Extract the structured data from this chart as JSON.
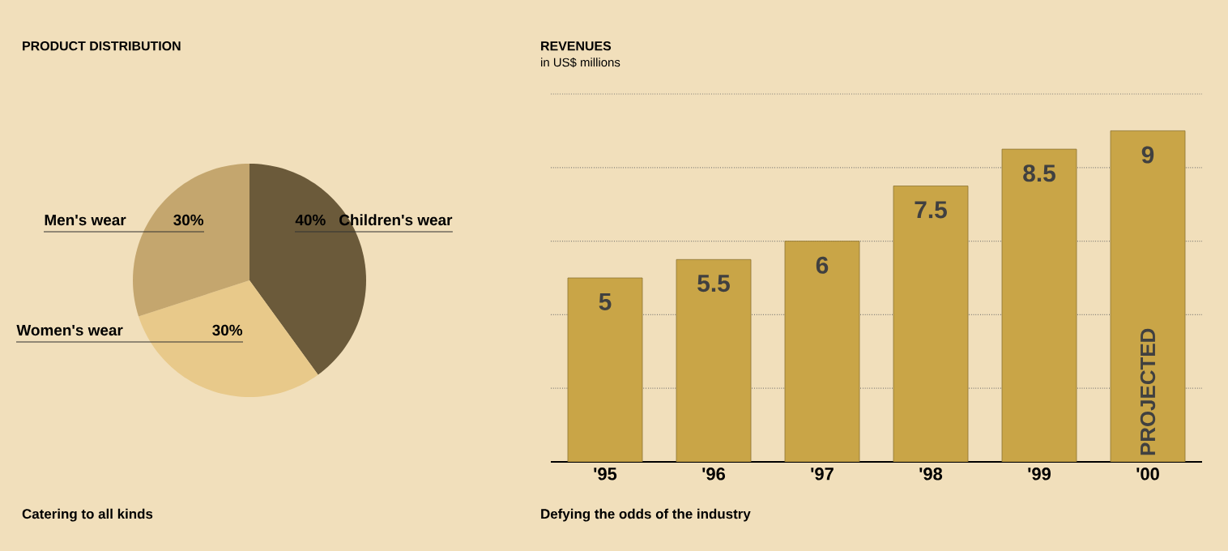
{
  "chart_data": [
    {
      "type": "pie",
      "title": "PRODUCT DISTRIBUTION",
      "categories": [
        "Children's wear",
        "Women's wear",
        "Men's wear"
      ],
      "values": [
        40,
        30,
        30
      ],
      "colors": [
        "#6b5a3a",
        "#e8c98a",
        "#c4a66e"
      ],
      "value_labels": [
        "40%",
        "30%",
        "30%"
      ],
      "annotations": [
        "Catering to all kinds"
      ]
    },
    {
      "type": "bar",
      "title": "REVENUES",
      "subtitle": "in US$ millions",
      "categories": [
        "'95",
        "'96",
        "'97",
        "'98",
        "'99",
        "'00"
      ],
      "values": [
        5,
        5.5,
        6,
        7.5,
        8.5,
        9
      ],
      "color": "#c9a547",
      "ylim": [
        0,
        10
      ],
      "yticks": [
        {
          "value": 0,
          "label": null
        },
        {
          "value": 2,
          "label": null
        },
        {
          "value": 4,
          "label": null
        },
        {
          "value": 6,
          "label": null
        },
        {
          "value": 8,
          "label": null
        },
        {
          "value": 10,
          "label": null
        }
      ],
      "grid": "y",
      "tick_labels": "x",
      "data_labels": true,
      "annotations": [
        "Defying the odds of the industry",
        "PROJECTED"
      ]
    }
  ]
}
